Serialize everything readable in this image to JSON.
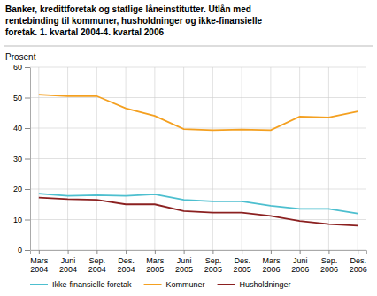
{
  "chart_data": {
    "type": "line",
    "title": "Banker, kredittforetak og statlige låneinstitutter. Utlån med\nrentebinding til kommuner, husholdninger og ikke-finansielle\nforetak. 1. kvartal 2004-4. kvartal 2006",
    "ylabel": "Prosent",
    "categories": [
      "Mars\n2004",
      "Juni\n2004",
      "Sep.\n2004",
      "Des.\n2004",
      "Mars\n2005",
      "Juni\n2005",
      "Sep.\n2005",
      "Des.\n2005",
      "Mars\n2006",
      "Juni\n2006",
      "Sep.\n2006",
      "Des.\n2006"
    ],
    "series": [
      {
        "name": "Ikke-finansielle foretak",
        "color": "#4DBFCF",
        "values": [
          18.5,
          17.8,
          18.0,
          17.8,
          18.3,
          16.5,
          16.0,
          16.0,
          14.5,
          13.5,
          13.5,
          12.0
        ]
      },
      {
        "name": "Kommuner",
        "color": "#F4A020",
        "values": [
          51.0,
          50.5,
          50.5,
          46.5,
          44.0,
          39.7,
          39.3,
          39.5,
          39.3,
          43.8,
          43.5,
          45.5
        ]
      },
      {
        "name": "Husholdninger",
        "color": "#8B2020",
        "values": [
          17.2,
          16.7,
          16.5,
          15.0,
          15.0,
          12.8,
          12.3,
          12.3,
          11.2,
          9.5,
          8.5,
          8.0
        ]
      }
    ],
    "ylim": [
      0,
      60
    ],
    "yticks": [
      0,
      10,
      20,
      30,
      40,
      50,
      60
    ],
    "grid": true,
    "legend": "bottom"
  }
}
